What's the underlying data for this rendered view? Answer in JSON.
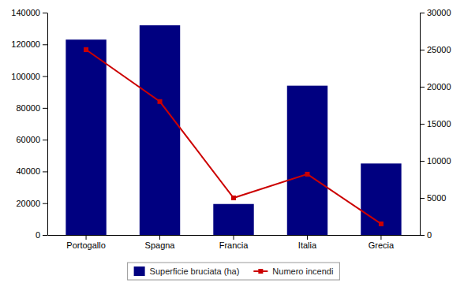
{
  "chart_data": {
    "type": "bar",
    "categories": [
      "Portogallo",
      "Spagna",
      "Francia",
      "Italia",
      "Grecia"
    ],
    "series": [
      {
        "name": "Superficie bruciata (ha)",
        "type": "bar",
        "color": "#000080",
        "values": [
          123000,
          132000,
          19500,
          94000,
          45000
        ]
      },
      {
        "name": "Numero incendi",
        "type": "line",
        "axis": "y2",
        "color": "#CC0000",
        "marker": "square",
        "values": [
          25000,
          18000,
          5000,
          8200,
          1500
        ]
      }
    ],
    "ylim": [
      0,
      140000
    ],
    "yticks": [
      0,
      20000,
      40000,
      60000,
      80000,
      100000,
      120000,
      140000
    ],
    "y2lim": [
      0,
      30000
    ],
    "y2ticks": [
      0,
      5000,
      10000,
      15000,
      20000,
      25000,
      30000
    ],
    "grid": false,
    "legend": "bottom"
  }
}
